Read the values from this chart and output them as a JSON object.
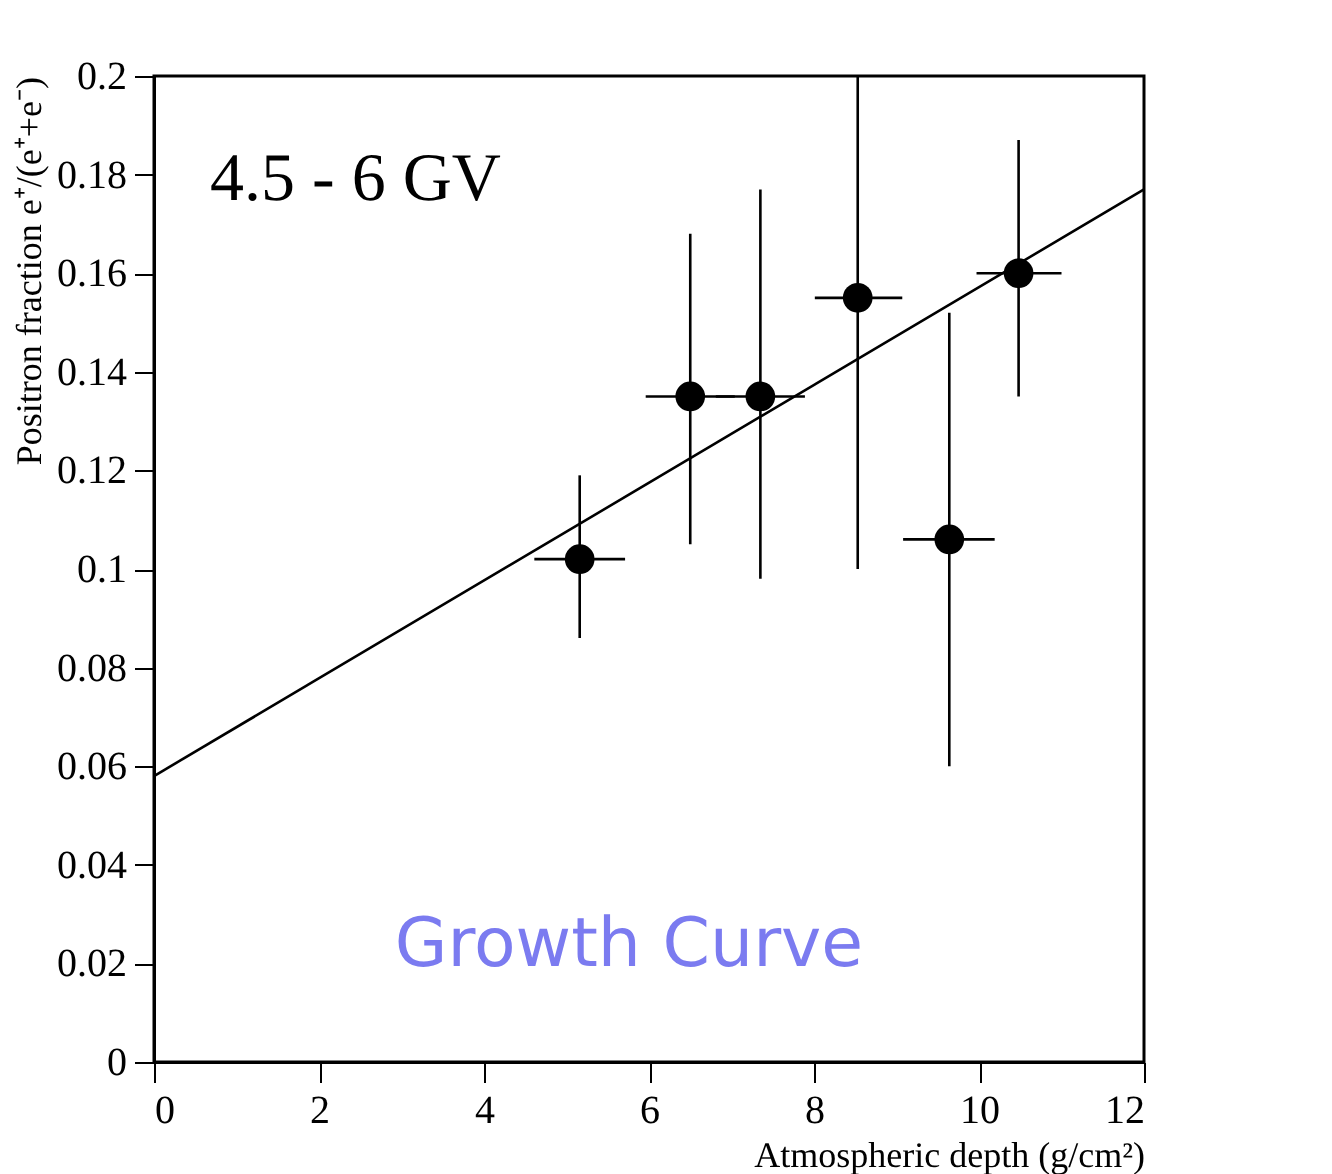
{
  "chart_data": {
    "type": "scatter",
    "xlabel": "Atmospheric depth (g/cm²)",
    "ylabel": "Positron fraction e⁺/(e⁺+e⁻)",
    "annotations": [
      "4.5 - 6 GV",
      "Growth Curve"
    ],
    "xlim": [
      0,
      12
    ],
    "xticks": [
      0,
      2,
      4,
      6,
      8,
      10,
      12
    ],
    "ylim": [
      0,
      0.2
    ],
    "yticks": [
      0,
      0.02,
      0.04,
      0.06,
      0.08,
      0.1,
      0.12,
      0.14,
      0.16,
      0.18,
      0.2
    ],
    "grid": false,
    "marker": "circle",
    "series": [
      {
        "color": "#000000",
        "x": [
          5.16,
          6.5,
          7.35,
          8.53,
          9.64,
          10.48
        ],
        "values": [
          0.102,
          0.135,
          0.135,
          0.155,
          0.106,
          0.16
        ],
        "errors": [
          [
            0.086,
            0.119
          ],
          [
            0.105,
            0.168
          ],
          [
            0.098,
            0.177
          ],
          [
            0.1,
            0.2
          ],
          [
            0.06,
            0.152
          ],
          [
            0.135,
            0.187
          ]
        ],
        "xerrors": [
          [
            4.61,
            5.71
          ],
          [
            5.96,
            7.04
          ],
          [
            6.81,
            7.89
          ],
          [
            8.01,
            9.07
          ],
          [
            9.08,
            10.19
          ],
          [
            9.97,
            11.0
          ]
        ]
      },
      {
        "type": "line",
        "color": "#000000",
        "x": [
          0,
          12
        ],
        "values": [
          0.058,
          0.177
        ],
        "line_style": "solid",
        "marker": "none"
      }
    ]
  }
}
